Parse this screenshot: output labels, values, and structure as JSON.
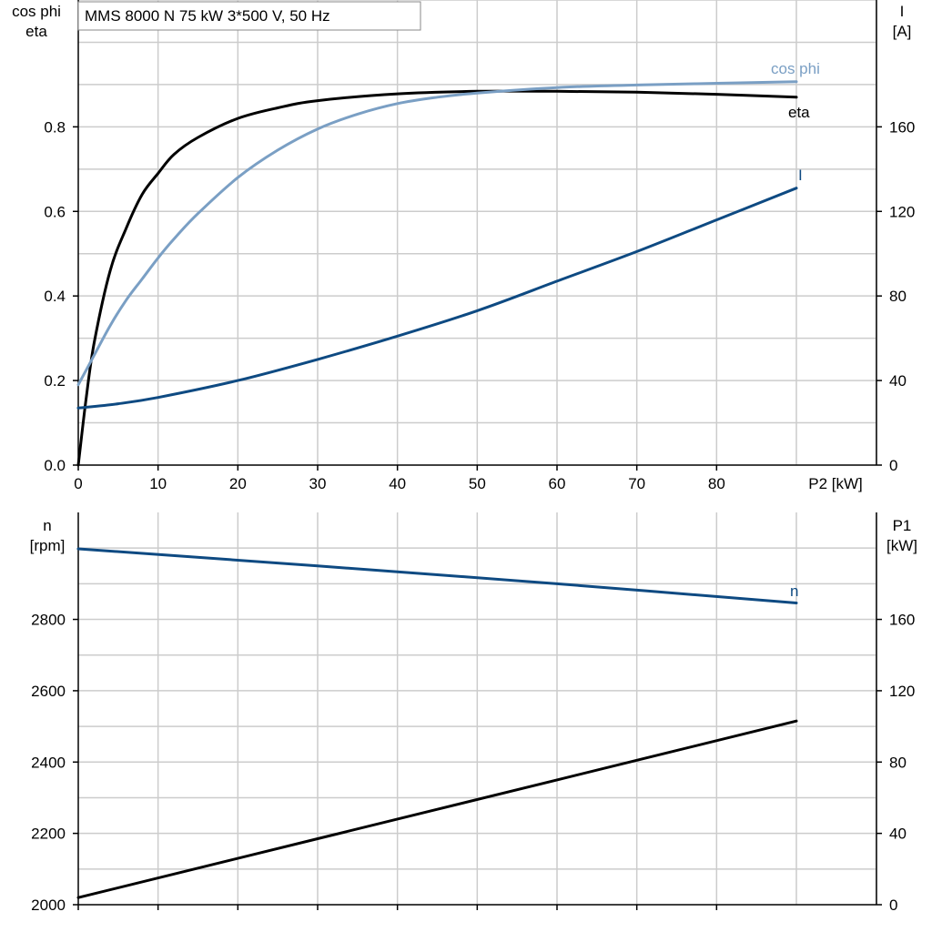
{
  "title": "MMS 8000 N   75 kW   3*500 V, 50 Hz",
  "colors": {
    "eta": "#000000",
    "cos_phi": "#7a9fc4",
    "I": "#0e4a82",
    "n": "#0e4a82",
    "P1": "#000000"
  },
  "chart_data": [
    {
      "type": "line",
      "xlabel": "P2 [kW]",
      "xlim": [
        0,
        100
      ],
      "xticks": [
        0,
        10,
        20,
        30,
        40,
        50,
        60,
        70,
        80
      ],
      "left_axis": {
        "label": [
          "cos phi",
          "eta"
        ],
        "lim": [
          0,
          1.1
        ],
        "ticks": [
          "0.0",
          "0.2",
          "0.4",
          "0.6",
          "0.8"
        ],
        "tick_values": [
          0,
          0.2,
          0.4,
          0.6,
          0.8
        ]
      },
      "right_axis": {
        "label": [
          "I",
          "[A]"
        ],
        "lim": [
          0,
          220
        ],
        "ticks": [
          "0",
          "40",
          "80",
          "120",
          "160"
        ],
        "tick_values": [
          0,
          40,
          80,
          120,
          160
        ]
      },
      "grid": true,
      "series": [
        {
          "name": "eta",
          "axis": "left",
          "color_key": "eta",
          "x": [
            0,
            1,
            2,
            4,
            6,
            8,
            10,
            12,
            15,
            20,
            25,
            30,
            40,
            50,
            60,
            70,
            80,
            90
          ],
          "y": [
            0.0,
            0.16,
            0.29,
            0.46,
            0.56,
            0.64,
            0.69,
            0.735,
            0.775,
            0.82,
            0.845,
            0.862,
            0.878,
            0.884,
            0.884,
            0.882,
            0.877,
            0.87
          ]
        },
        {
          "name": "cos phi",
          "axis": "left",
          "color_key": "cos_phi",
          "x": [
            0,
            1,
            2,
            4,
            6,
            8,
            10,
            12,
            15,
            20,
            25,
            30,
            35,
            40,
            45,
            50,
            60,
            70,
            80,
            90
          ],
          "y": [
            0.19,
            0.225,
            0.26,
            0.33,
            0.39,
            0.44,
            0.49,
            0.535,
            0.595,
            0.68,
            0.745,
            0.795,
            0.83,
            0.855,
            0.87,
            0.88,
            0.893,
            0.899,
            0.903,
            0.907
          ]
        },
        {
          "name": "I",
          "axis": "right",
          "color_key": "I",
          "x": [
            0,
            5,
            10,
            20,
            30,
            40,
            50,
            60,
            70,
            80,
            90
          ],
          "y": [
            27,
            29,
            32,
            40,
            50,
            61,
            73,
            87,
            101,
            116,
            131
          ]
        }
      ]
    },
    {
      "type": "line",
      "left_axis": {
        "label": [
          "n",
          "[rpm]"
        ],
        "lim": [
          2000,
          3100
        ],
        "ticks": [
          "2000",
          "2200",
          "2400",
          "2600",
          "2800"
        ],
        "tick_values": [
          2000,
          2200,
          2400,
          2600,
          2800
        ]
      },
      "right_axis": {
        "label": [
          "P1",
          "[kW]"
        ],
        "lim": [
          0,
          220
        ],
        "ticks": [
          "0",
          "40",
          "80",
          "120",
          "160"
        ],
        "tick_values": [
          0,
          40,
          80,
          120,
          160
        ]
      },
      "xlim": [
        0,
        100
      ],
      "xticks": [
        0,
        10,
        20,
        30,
        40,
        50,
        60,
        70,
        80
      ],
      "grid": true,
      "series": [
        {
          "name": "n",
          "axis": "left",
          "color_key": "n",
          "x": [
            0,
            30,
            60,
            90
          ],
          "y": [
            2998,
            2950,
            2900,
            2846
          ]
        },
        {
          "axis": "right",
          "color_key": "P1",
          "x": [
            0,
            30,
            60,
            90
          ],
          "y": [
            4,
            37,
            70,
            103
          ]
        }
      ]
    }
  ]
}
